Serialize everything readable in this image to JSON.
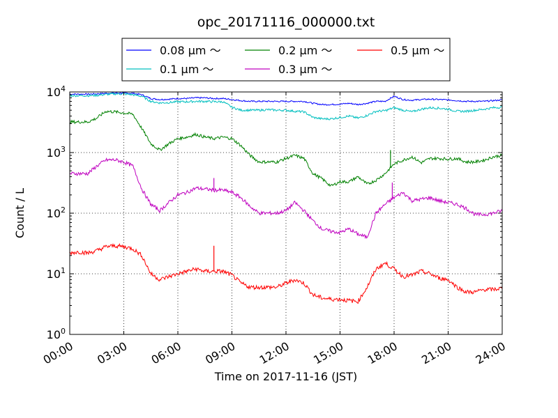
{
  "chart_data": {
    "type": "line",
    "title": "opc_20171116_000000.txt",
    "xlabel": "Time on 2017-11-16 (JST)",
    "ylabel": "Count / L",
    "x_ticks": [
      "00:00",
      "03:00",
      "06:00",
      "09:00",
      "12:00",
      "15:00",
      "18:00",
      "21:00",
      "24:00"
    ],
    "xlim": [
      "00:00",
      "24:00"
    ],
    "y_scale": "log",
    "ylim": [
      1,
      10000
    ],
    "y_ticks": [
      {
        "base": "10",
        "exp": "0"
      },
      {
        "base": "10",
        "exp": "1"
      },
      {
        "base": "10",
        "exp": "2"
      },
      {
        "base": "10",
        "exp": "3"
      },
      {
        "base": "10",
        "exp": "4"
      }
    ],
    "grid": true,
    "legend": {
      "placement": "top-center, above plot",
      "columns": 3
    },
    "x_hours": [
      0,
      0.5,
      1,
      1.5,
      2,
      2.5,
      3,
      3.5,
      4,
      4.5,
      5,
      5.5,
      6,
      6.5,
      7,
      7.5,
      8,
      8.5,
      9,
      9.5,
      10,
      10.5,
      11,
      11.5,
      12,
      12.5,
      13,
      13.5,
      14,
      14.5,
      15,
      15.5,
      16,
      16.5,
      17,
      17.5,
      18,
      18.5,
      19,
      19.5,
      20,
      20.5,
      21,
      21.5,
      22,
      22.5,
      23,
      23.5,
      24
    ],
    "series": [
      {
        "name": "0.08 µm ～",
        "color": "#0000ff",
        "values": [
          9200,
          9200,
          9200,
          9300,
          9500,
          9600,
          9600,
          9500,
          9000,
          7800,
          7500,
          7600,
          7800,
          7800,
          8000,
          8000,
          7800,
          7800,
          7500,
          7200,
          7000,
          7000,
          7000,
          7000,
          7000,
          7000,
          7000,
          6500,
          6200,
          6200,
          6300,
          6500,
          6200,
          6500,
          7000,
          7000,
          8500,
          7500,
          7300,
          7500,
          7600,
          7500,
          7400,
          7200,
          7000,
          7000,
          7000,
          7200,
          7400
        ]
      },
      {
        "name": "0.1 µm ～",
        "color": "#00bfbf",
        "values": [
          8700,
          8700,
          8700,
          8800,
          9100,
          9300,
          9300,
          9000,
          8500,
          7000,
          6600,
          6700,
          6900,
          6900,
          7000,
          7000,
          6900,
          6900,
          5600,
          5000,
          5000,
          5000,
          5100,
          5000,
          5000,
          4800,
          4700,
          3800,
          3600,
          3600,
          3800,
          4000,
          3700,
          4100,
          4800,
          4900,
          5500,
          5000,
          4700,
          5200,
          5500,
          5400,
          5200,
          4800,
          4800,
          5000,
          5200,
          5500,
          5600
        ]
      },
      {
        "name": "0.2 µm ～",
        "color": "#008000",
        "values": [
          3200,
          3200,
          3200,
          3700,
          4800,
          4700,
          4500,
          4300,
          2500,
          1400,
          1100,
          1400,
          1700,
          1800,
          2000,
          1800,
          1700,
          1800,
          1700,
          1300,
          900,
          700,
          700,
          700,
          800,
          900,
          800,
          450,
          370,
          280,
          330,
          330,
          400,
          300,
          350,
          450,
          650,
          750,
          850,
          680,
          800,
          800,
          780,
          800,
          700,
          700,
          750,
          850,
          900
        ]
      },
      {
        "name": "0.3 µm ～",
        "color": "#bf00bf",
        "values": [
          450,
          450,
          450,
          600,
          750,
          760,
          700,
          600,
          250,
          140,
          110,
          150,
          200,
          220,
          260,
          250,
          240,
          240,
          220,
          180,
          130,
          100,
          100,
          100,
          110,
          150,
          110,
          75,
          55,
          50,
          48,
          55,
          45,
          40,
          100,
          140,
          180,
          220,
          160,
          170,
          180,
          160,
          150,
          140,
          120,
          95,
          95,
          100,
          110
        ]
      },
      {
        "name": "0.5 µm ～",
        "color": "#ff0000",
        "values": [
          22,
          23,
          22,
          24,
          28,
          29,
          28,
          26,
          20,
          10,
          8,
          9,
          10,
          11,
          12,
          11,
          11,
          11,
          9.5,
          7,
          6,
          6,
          6,
          6,
          7,
          8,
          7,
          4.5,
          4,
          3.8,
          3.8,
          3.6,
          3.5,
          6,
          12,
          15,
          12,
          9,
          9.5,
          11,
          10,
          8.5,
          8,
          6,
          5,
          5,
          5.5,
          5.5,
          5.8
        ]
      }
    ],
    "annotations": [
      {
        "series": "0.5 µm ～",
        "x": 8.0,
        "y": 29
      },
      {
        "series": "0.3 µm ～",
        "x": 8.0,
        "y": 380
      },
      {
        "series": "0.2 µm ～",
        "x": 17.8,
        "y": 1100
      },
      {
        "series": "0.3 µm ～",
        "x": 17.9,
        "y": 320
      }
    ]
  }
}
